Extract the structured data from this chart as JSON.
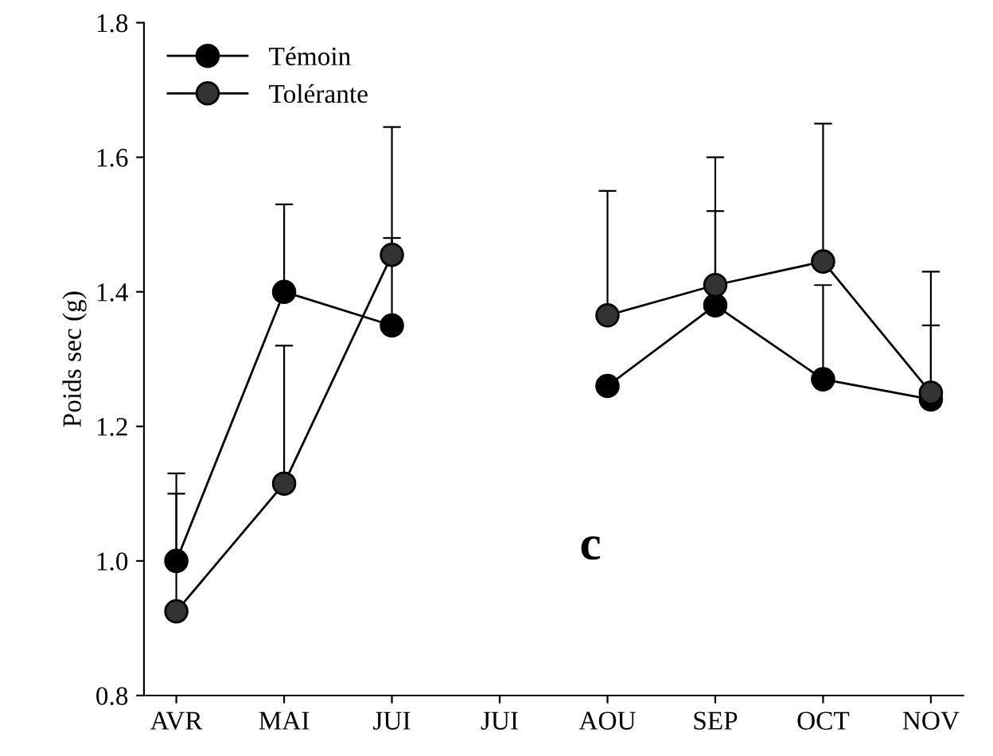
{
  "chart_data": {
    "type": "line",
    "ylabel": "Poids sec (g)",
    "categories": [
      "AVR",
      "MAI",
      "JUI",
      "JUI",
      "AOU",
      "SEP",
      "OCT",
      "NOV"
    ],
    "series": [
      {
        "name": "Témoin",
        "color": "#000000",
        "values": [
          1.0,
          1.4,
          1.35,
          null,
          1.26,
          1.38,
          1.27,
          1.24
        ],
        "errors": [
          [
            1.0,
            1.13
          ],
          [
            1.4,
            1.53
          ],
          [
            1.35,
            1.48
          ],
          null,
          null,
          [
            1.38,
            1.52
          ],
          [
            1.27,
            1.41
          ],
          [
            1.24,
            1.35
          ]
        ]
      },
      {
        "name": "Tolérante",
        "color": "#333333",
        "values": [
          0.925,
          1.115,
          1.455,
          null,
          1.365,
          1.41,
          1.445,
          1.25
        ],
        "errors": [
          [
            0.925,
            1.1
          ],
          [
            1.115,
            1.32
          ],
          [
            1.455,
            1.645
          ],
          null,
          [
            1.365,
            1.55
          ],
          [
            1.41,
            1.6
          ],
          [
            1.445,
            1.65
          ],
          [
            1.25,
            1.43
          ]
        ]
      }
    ],
    "ylim": [
      0.8,
      1.8
    ],
    "yticks": [
      0.8,
      {
        "value": 1,
        "label": "1.0"
      },
      1.2,
      1.4,
      1.6,
      1.8
    ],
    "annotations": [
      "c"
    ],
    "legend": "top left",
    "marker": "circle",
    "line_style": "solid",
    "grid": false
  }
}
